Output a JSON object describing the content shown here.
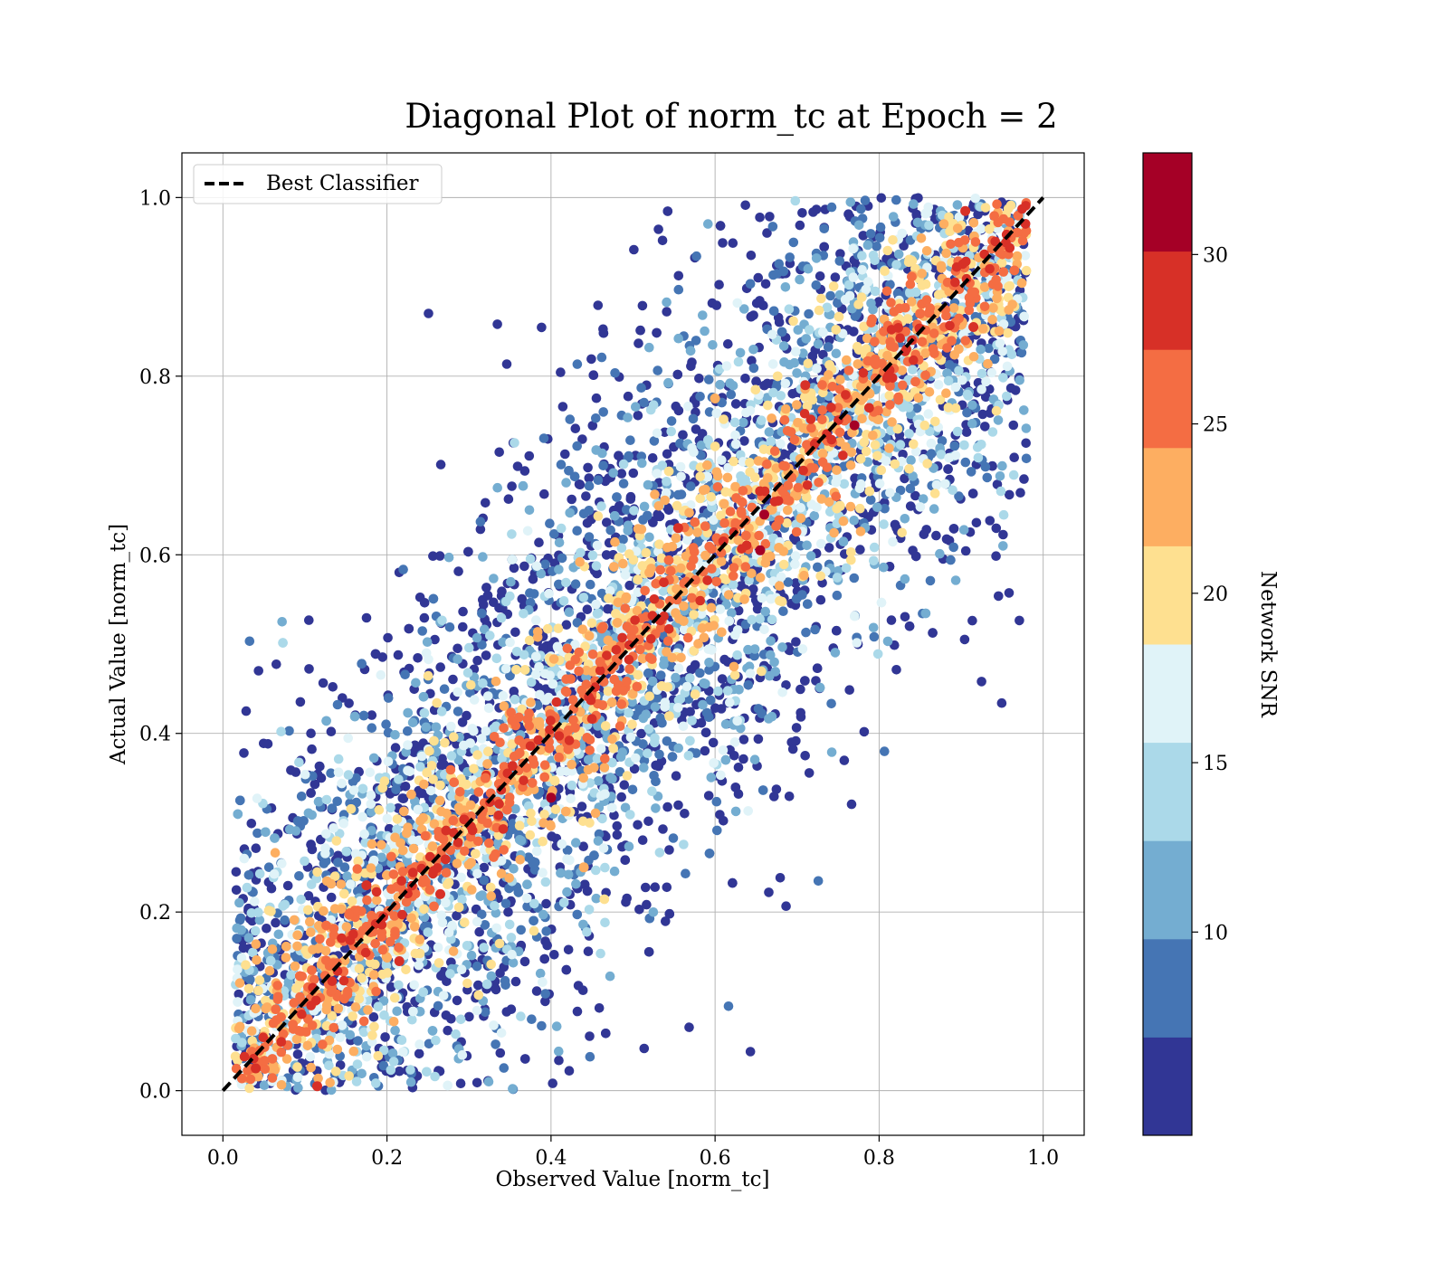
{
  "chart_data": {
    "type": "scatter",
    "title": "Diagonal Plot of norm_tc at Epoch = 2",
    "xlabel": "Observed Value [norm_tc]",
    "ylabel": "Actual Value [norm_tc]",
    "xlim": [
      -0.05,
      1.05
    ],
    "ylim": [
      -0.05,
      1.05
    ],
    "xticks": [
      "0.0",
      "0.2",
      "0.4",
      "0.6",
      "0.8",
      "1.0"
    ],
    "yticks": [
      "0.0",
      "0.2",
      "0.4",
      "0.6",
      "0.8",
      "1.0"
    ],
    "grid": true,
    "legend": {
      "position": "upper-left",
      "entries": [
        {
          "label": "Best Classifier",
          "style": "dashed",
          "color": "#000000"
        }
      ]
    },
    "reference_line": {
      "name": "Best Classifier",
      "x": [
        0,
        1
      ],
      "y": [
        0,
        1
      ]
    },
    "colorbar": {
      "label": "Network SNR",
      "range": [
        4,
        33
      ],
      "ticks": [
        "10",
        "15",
        "20",
        "25",
        "30"
      ],
      "tick_values": [
        10,
        15,
        20,
        25,
        30
      ],
      "colors": [
        "#313695",
        "#4575b4",
        "#74add1",
        "#abd9e9",
        "#e0f3f8",
        "#fee090",
        "#fdae61",
        "#f46d43",
        "#d73027",
        "#a50026"
      ]
    },
    "scatter_summary": {
      "description_of_distribution": "dense band along diagonal with high SNR near y = x, low SNR spread away",
      "x_range": [
        0.0,
        0.98
      ],
      "y_range": [
        0.0,
        1.0
      ],
      "snr_range": [
        4,
        33
      ]
    },
    "points": [
      {
        "x": 0.04,
        "y": 0.025,
        "snr": 28
      },
      {
        "x": 0.115,
        "y": 0.005,
        "snr": 28
      },
      {
        "x": 0.175,
        "y": 0.23,
        "snr": 28
      },
      {
        "x": 0.215,
        "y": 0.145,
        "snr": 28
      },
      {
        "x": 0.265,
        "y": 0.22,
        "snr": 28
      },
      {
        "x": 0.4,
        "y": 0.328,
        "snr": 31
      },
      {
        "x": 0.555,
        "y": 0.63,
        "snr": 28
      },
      {
        "x": 0.61,
        "y": 0.615,
        "snr": 28
      },
      {
        "x": 0.655,
        "y": 0.605,
        "snr": 31
      },
      {
        "x": 0.66,
        "y": 0.645,
        "snr": 31
      },
      {
        "x": 0.77,
        "y": 0.745,
        "snr": 31
      },
      {
        "x": 0.71,
        "y": 0.79,
        "snr": 28
      },
      {
        "x": 0.905,
        "y": 0.985,
        "snr": 28
      },
      {
        "x": 0.915,
        "y": 0.855,
        "snr": 28
      },
      {
        "x": 0.6,
        "y": 0.775,
        "snr": 23
      },
      {
        "x": 0.44,
        "y": 0.25,
        "snr": 22
      },
      {
        "x": 0.46,
        "y": 0.48,
        "snr": 26
      },
      {
        "x": 0.32,
        "y": 0.35,
        "snr": 25
      },
      {
        "x": 0.52,
        "y": 0.58,
        "snr": 24
      },
      {
        "x": 0.85,
        "y": 0.87,
        "snr": 25
      }
    ]
  }
}
